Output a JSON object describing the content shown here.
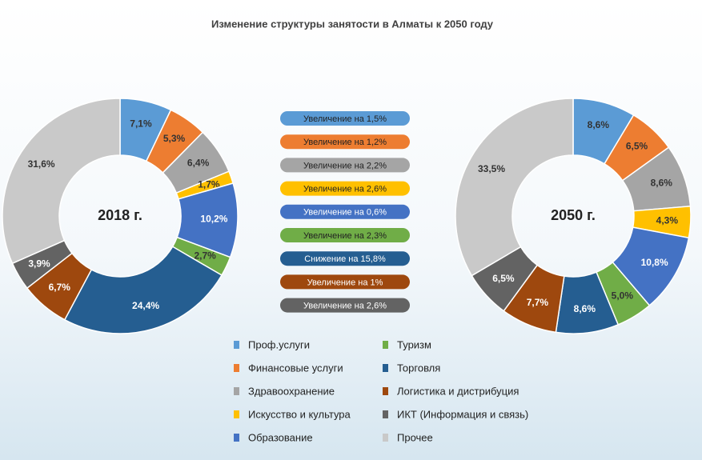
{
  "chart_data": {
    "type": "donut",
    "title": "Изменение структуры занятости в Алматы к 2050 году",
    "categories": [
      "Проф.услуги",
      "Финансовые услуги",
      "Здравоохранение",
      "Искусство и культура",
      "Образование",
      "Туризм",
      "Торговля",
      "Логистика и дистрибуция",
      "ИКТ (Информация и связь)",
      "Прочее"
    ],
    "colors": [
      "#5b9bd5",
      "#ed7d31",
      "#a5a5a5",
      "#ffc000",
      "#4472c4",
      "#70ad47",
      "#255e91",
      "#9e480e",
      "#636363",
      "#c9c9c9"
    ],
    "series": [
      {
        "name": "2018 г.",
        "values": [
          7.1,
          5.3,
          6.4,
          1.7,
          10.2,
          2.7,
          24.4,
          6.7,
          3.9,
          31.6
        ],
        "value_labels": [
          "7,1%",
          "5,3%",
          "6,4%",
          "1,7%",
          "10,2%",
          "2,7%",
          "24,4%",
          "6,7%",
          "3,9%",
          "31,6%"
        ]
      },
      {
        "name": "2050 г.",
        "values": [
          8.6,
          6.5,
          8.6,
          4.3,
          10.8,
          5.0,
          8.6,
          7.7,
          6.5,
          33.5
        ],
        "value_labels": [
          "8,6%",
          "6,5%",
          "8,6%",
          "4,3%",
          "10,8%",
          "5,0%",
          "8,6%",
          "7,7%",
          "6,5%",
          "33,5%"
        ]
      }
    ],
    "annotations": [
      "Увеличение на 1,5%",
      "Увеличение на 1,2%",
      "Увеличение на 2,2%",
      "Увеличение на 2,6%",
      "Увеличение на 0,6%",
      "Увеличение на 2,3%",
      "Снижение на 15,8%",
      "Увеличение на 1%",
      "Увеличение на 2,6%"
    ]
  }
}
